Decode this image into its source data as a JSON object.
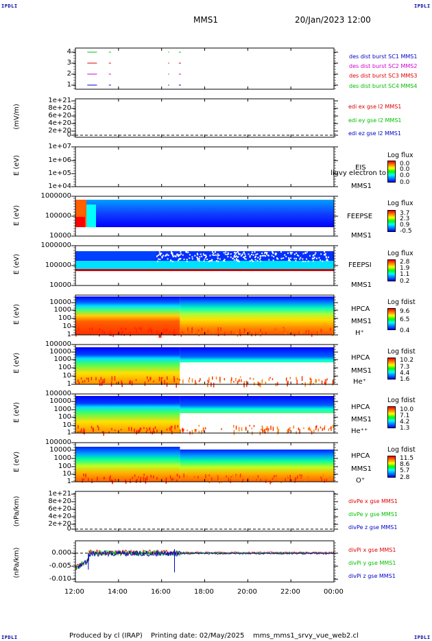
{
  "corners": {
    "tl": "IPDLI",
    "tr": "IPDLI",
    "bl": "IPDLI",
    "br": "IPDLI"
  },
  "header": {
    "title": "MMS1",
    "date": "20/Jan/2023 12:00"
  },
  "footer": {
    "produced_by": "Produced by cl (IRAP)",
    "printing_date": "Printing date: 02/May/2025",
    "file": "mms_mms1_srvy_vue_web2.cl"
  },
  "xaxis": {
    "ticks": [
      "12:00",
      "14:00",
      "16:00",
      "18:00",
      "20:00",
      "22:00",
      "00:00"
    ]
  },
  "colors": {
    "blue": "#0000c8",
    "magenta": "#d000d0",
    "red": "#e00000",
    "green": "#00c000"
  },
  "chart_data": [
    {
      "panel": "burst",
      "type": "line",
      "ylabel": "",
      "yticks": [
        "4",
        "3",
        "2",
        "1"
      ],
      "legend": [
        {
          "label": "des dist burst SC1 MMS1",
          "color": "#0000c8"
        },
        {
          "label": "des dist burst SC2 MMS2",
          "color": "#d000d0"
        },
        {
          "label": "des dist burst SC3 MMS3",
          "color": "#e00000"
        },
        {
          "label": "des dist burst SC4 MMS4",
          "color": "#00c000"
        }
      ],
      "segments": [
        {
          "sc": 4,
          "hours": [
            [
              0.55,
              1.0
            ],
            [
              1.55,
              1.65
            ],
            [
              4.3,
              4.35
            ],
            [
              4.8,
              4.9
            ]
          ]
        },
        {
          "sc": 3,
          "hours": [
            [
              0.55,
              1.0
            ],
            [
              1.55,
              1.65
            ],
            [
              4.3,
              4.35
            ],
            [
              4.8,
              4.9
            ]
          ]
        },
        {
          "sc": 2,
          "hours": [
            [
              0.55,
              1.0
            ],
            [
              1.55,
              1.65
            ],
            [
              4.3,
              4.35
            ],
            [
              4.8,
              4.9
            ]
          ]
        },
        {
          "sc": 1,
          "hours": [
            [
              0.55,
              1.0
            ],
            [
              1.55,
              1.65
            ],
            [
              4.3,
              4.35
            ],
            [
              4.8,
              4.9
            ]
          ]
        }
      ]
    },
    {
      "panel": "edi",
      "type": "line",
      "ylabel": "(mV/m)",
      "yticks": [
        "1e+21",
        "8e+20",
        "6e+20",
        "4e+20",
        "2e+20",
        "0"
      ],
      "legend": [
        {
          "label": "edi ex gse l2 MMS1",
          "color": "#e00000"
        },
        {
          "label": "edi ey gse l2 MMS1",
          "color": "#00c000"
        },
        {
          "label": "edi ez gse l2 MMS1",
          "color": "#0000c8"
        }
      ]
    },
    {
      "panel": "eis",
      "type": "heatmap",
      "ylabel": "E (eV)",
      "yticks": [
        "1e+07",
        "1e+06",
        "1e+05",
        "1e+04"
      ],
      "right_labels": [
        "EIS",
        "MMS1"
      ],
      "overlap_label": "ligvy electron to",
      "cbar_title": "Log flux",
      "cbar_values": [
        "0.0",
        "0.0",
        "0.0",
        "0.0"
      ]
    },
    {
      "panel": "feepse",
      "type": "heatmap",
      "ylabel": "E (eV)",
      "yticks": [
        "1000000",
        "100000",
        "10000"
      ],
      "right_labels": [
        "FEEPSE",
        "MMS1"
      ],
      "cbar_title": "Log flux",
      "cbar_values": [
        "3.7",
        "2.3",
        "0.9",
        "-0.5"
      ]
    },
    {
      "panel": "feepsi",
      "type": "heatmap",
      "ylabel": "E (eV)",
      "yticks": [
        "1000000",
        "100000",
        "10000"
      ],
      "right_labels": [
        "FEEPSI",
        "MMS1"
      ],
      "cbar_title": "Log flux",
      "cbar_values": [
        "2.8",
        "1.9",
        "1.1",
        "0.2"
      ]
    },
    {
      "panel": "hpca_h",
      "type": "heatmap",
      "ylabel": "E (eV)",
      "yticks": [
        "10000",
        "1000",
        "100",
        "10",
        "1"
      ],
      "right_labels": [
        "HPCA",
        "MMS1",
        "H⁺"
      ],
      "cbar_title": "Log fdist",
      "cbar_values": [
        "9.6",
        "6.5",
        "0.4"
      ]
    },
    {
      "panel": "hpca_he",
      "type": "heatmap",
      "ylabel": "E (eV)",
      "yticks": [
        "100000",
        "10000",
        "1000",
        "100",
        "10",
        "1"
      ],
      "right_labels": [
        "HPCA",
        "MMS1",
        "He⁺"
      ],
      "cbar_title": "Log fdist",
      "cbar_values": [
        "10.2",
        "7.3",
        "4.4",
        "1.6"
      ]
    },
    {
      "panel": "hpca_hepp",
      "type": "heatmap",
      "ylabel": "E (eV)",
      "yticks": [
        "100000",
        "10000",
        "1000",
        "100",
        "10",
        "1"
      ],
      "right_labels": [
        "HPCA",
        "MMS1",
        "He⁺⁺"
      ],
      "cbar_title": "Log fdist",
      "cbar_values": [
        "10.0",
        "7.1",
        "4.2",
        "1.3"
      ]
    },
    {
      "panel": "hpca_o",
      "type": "heatmap",
      "ylabel": "E (eV)",
      "yticks": [
        "100000",
        "10000",
        "1000",
        "100",
        "10",
        "1"
      ],
      "right_labels": [
        "HPCA",
        "MMS1",
        "O⁺"
      ],
      "cbar_title": "Log fdist",
      "cbar_values": [
        "11.5",
        "8.6",
        "5.7",
        "2.8"
      ]
    },
    {
      "panel": "divpe",
      "type": "line",
      "ylabel": "(nPa/km)",
      "yticks": [
        "1e+21",
        "8e+20",
        "6e+20",
        "4e+20",
        "2e+20",
        "0"
      ],
      "legend": [
        {
          "label": "divPe x gse MMS1",
          "color": "#e00000"
        },
        {
          "label": "divPe y gse MMS1",
          "color": "#00c000"
        },
        {
          "label": "divPe z gse MMS1",
          "color": "#0000c8"
        }
      ]
    },
    {
      "panel": "divpi",
      "type": "line",
      "ylabel": "(nPa/km)",
      "yticks": [
        "0.000",
        "-0.005",
        "-0.010"
      ],
      "legend": [
        {
          "label": "divPi x gse MMS1",
          "color": "#e00000"
        },
        {
          "label": "divPi y gse MMS1",
          "color": "#00c000"
        },
        {
          "label": "divPi z gse MMS1",
          "color": "#0000c8"
        }
      ]
    }
  ]
}
